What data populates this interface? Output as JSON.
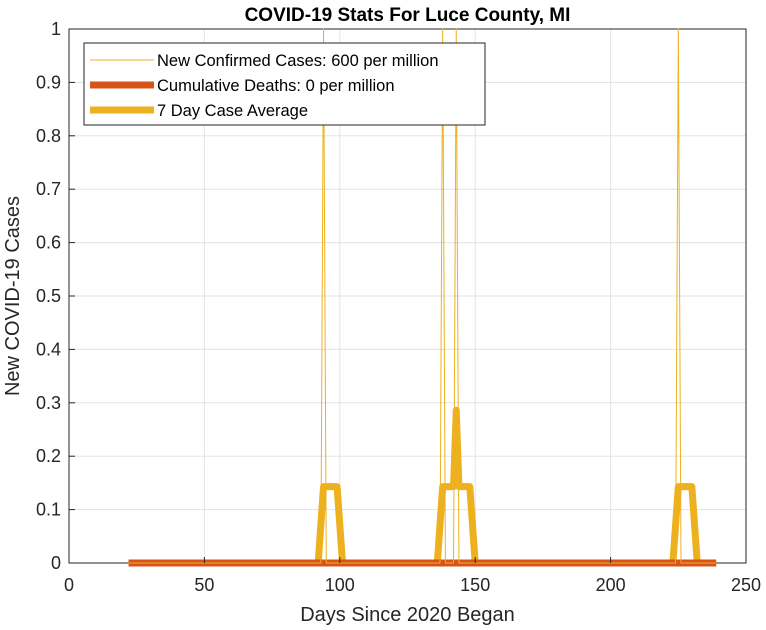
{
  "chart_data": {
    "type": "line",
    "title": "COVID-19 Stats For Luce County, MI",
    "xlabel": "Days Since 2020 Began",
    "ylabel": "New COVID-19 Cases",
    "xlim": [
      0,
      250
    ],
    "ylim": [
      0,
      1
    ],
    "xticks": [
      0,
      50,
      100,
      150,
      200,
      250
    ],
    "yticks": [
      0,
      0.1,
      0.2,
      0.3,
      0.4,
      0.5,
      0.6,
      0.7,
      0.8,
      0.9,
      1
    ],
    "ytick_labels": [
      "0",
      "0.1",
      "0.2",
      "0.3",
      "0.4",
      "0.5",
      "0.6",
      "0.7",
      "0.8",
      "0.9",
      "1"
    ],
    "grid": true,
    "legend_position": "top-left",
    "series": [
      {
        "name": "New Confirmed Cases: 600 per million",
        "color": "#EDB120",
        "points": [
          [
            22,
            0
          ],
          [
            93,
            0
          ],
          [
            94,
            1
          ],
          [
            95,
            0
          ],
          [
            137,
            0
          ],
          [
            138,
            1
          ],
          [
            139,
            0
          ],
          [
            142,
            0
          ],
          [
            143,
            1
          ],
          [
            144,
            0
          ],
          [
            224,
            0
          ],
          [
            225,
            1
          ],
          [
            226,
            0
          ],
          [
            239,
            0
          ]
        ]
      },
      {
        "name": "Cumulative Deaths: 0 per million",
        "color": "#D95319",
        "points": [
          [
            22,
            0
          ],
          [
            239,
            0
          ]
        ]
      },
      {
        "name": "7 Day Case Average",
        "color": "#EDB120",
        "points": [
          [
            22,
            0
          ],
          [
            92,
            0
          ],
          [
            94,
            0.143
          ],
          [
            99,
            0.143
          ],
          [
            101,
            0
          ],
          [
            136,
            0
          ],
          [
            138,
            0.143
          ],
          [
            141,
            0.143
          ],
          [
            142,
            0.143
          ],
          [
            143,
            0.286
          ],
          [
            144,
            0.143
          ],
          [
            148,
            0.143
          ],
          [
            150,
            0
          ],
          [
            223,
            0
          ],
          [
            225,
            0.143
          ],
          [
            230,
            0.143
          ],
          [
            232,
            0
          ],
          [
            239,
            0
          ]
        ]
      }
    ]
  }
}
